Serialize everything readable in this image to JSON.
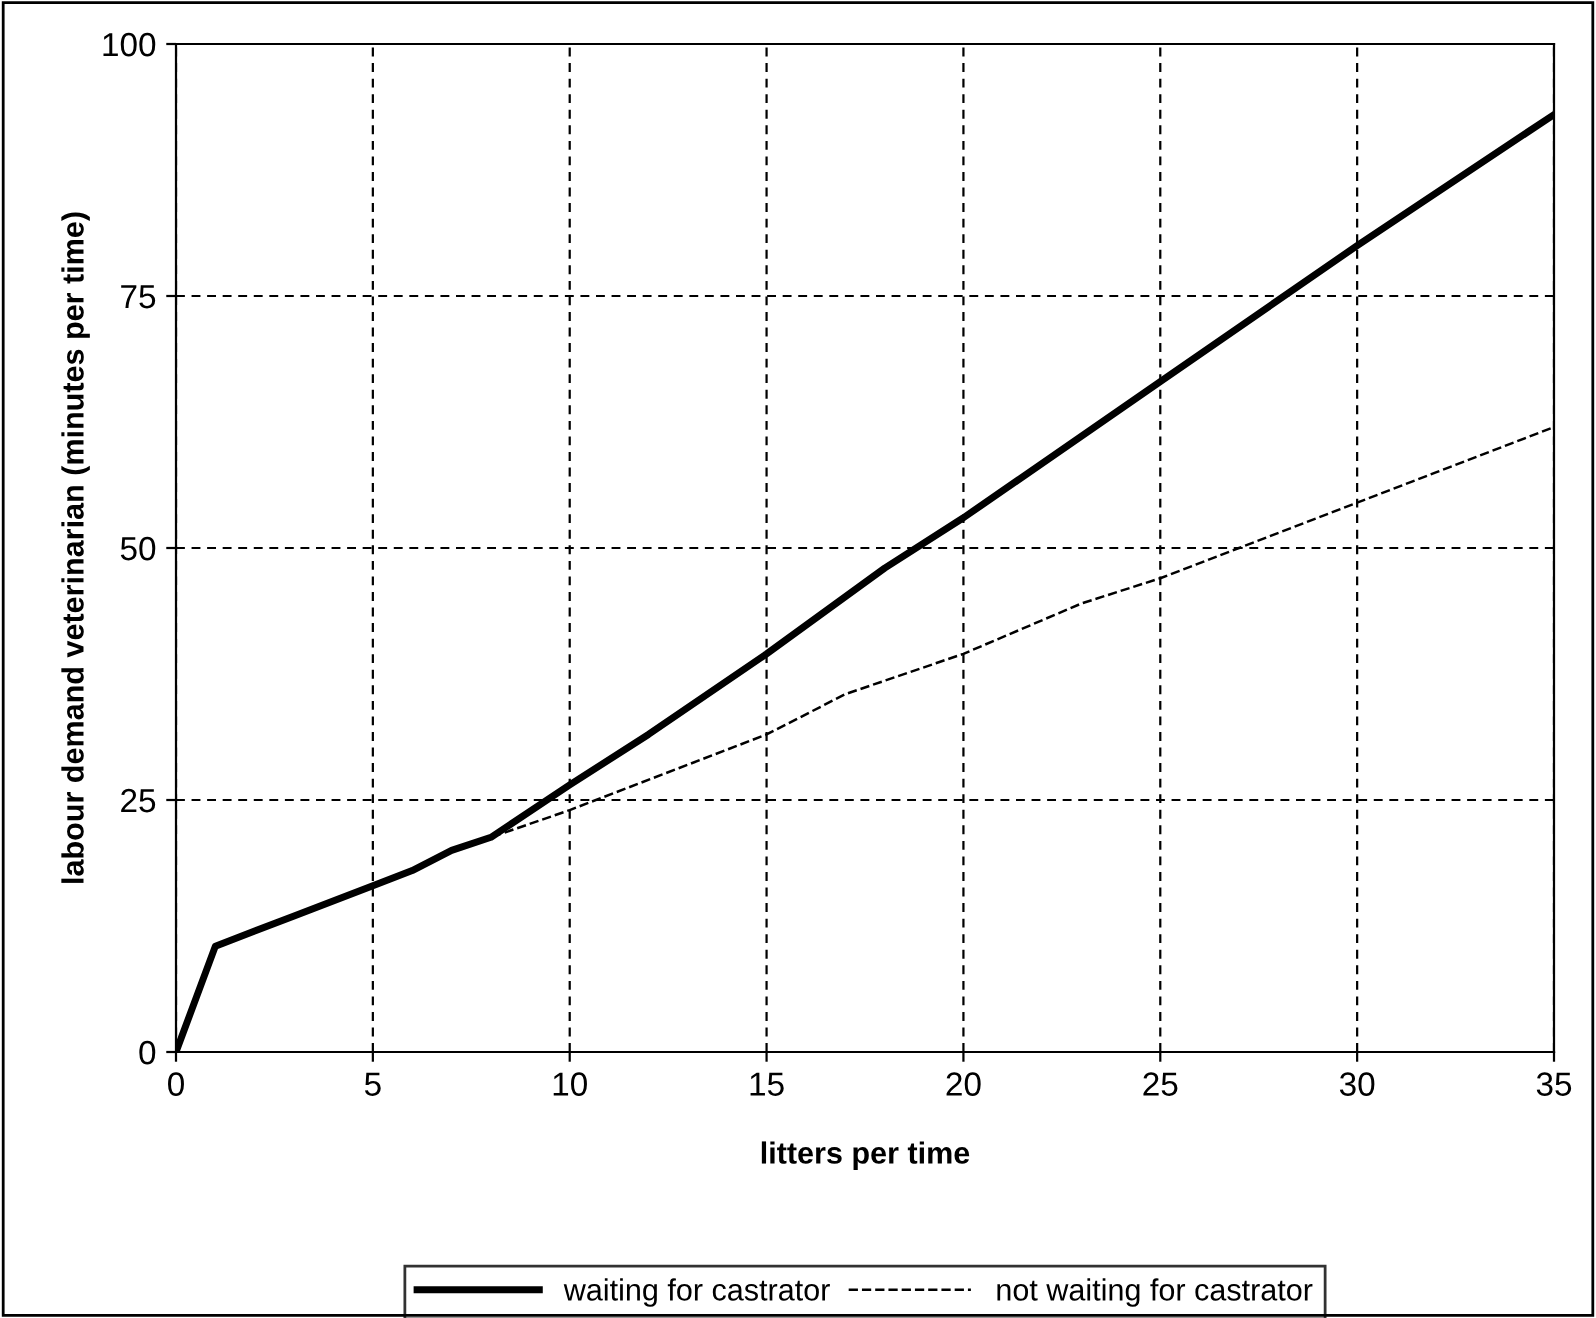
{
  "chart_data": {
    "type": "line",
    "xlabel": "litters per time",
    "ylabel": "labour demand veterinarian (minutes per time)",
    "xlim": [
      0,
      35
    ],
    "xticks": [
      0,
      5,
      10,
      15,
      20,
      25,
      30,
      35
    ],
    "ylim": [
      0,
      100
    ],
    "yticks": [
      0,
      25,
      50,
      75,
      100
    ],
    "grid": true,
    "legend": "bottom",
    "marker": "none",
    "series": [
      {
        "name": "waiting for castrator",
        "color": "#000000",
        "line_style": "solid",
        "x": [
          0,
          1,
          3,
          5,
          6,
          7,
          8,
          10,
          12,
          15,
          18,
          20,
          25,
          30,
          35
        ],
        "values": [
          0,
          10.5,
          13.5,
          16.5,
          18,
          20,
          21.3,
          26.5,
          31.5,
          39.5,
          48,
          53,
          66.5,
          80,
          93
        ]
      },
      {
        "name": "not waiting for castrator",
        "color": "#000000",
        "line_style": "dashed",
        "x": [
          0,
          1,
          3,
          5,
          6,
          7,
          8,
          10,
          13,
          15,
          17,
          20,
          23,
          25,
          27,
          30,
          32,
          35
        ],
        "values": [
          0,
          10.5,
          13.5,
          16.5,
          18,
          20,
          21.3,
          24,
          28.5,
          31.5,
          35.5,
          39.5,
          44.5,
          47,
          50,
          54.5,
          57.5,
          62
        ]
      }
    ]
  }
}
